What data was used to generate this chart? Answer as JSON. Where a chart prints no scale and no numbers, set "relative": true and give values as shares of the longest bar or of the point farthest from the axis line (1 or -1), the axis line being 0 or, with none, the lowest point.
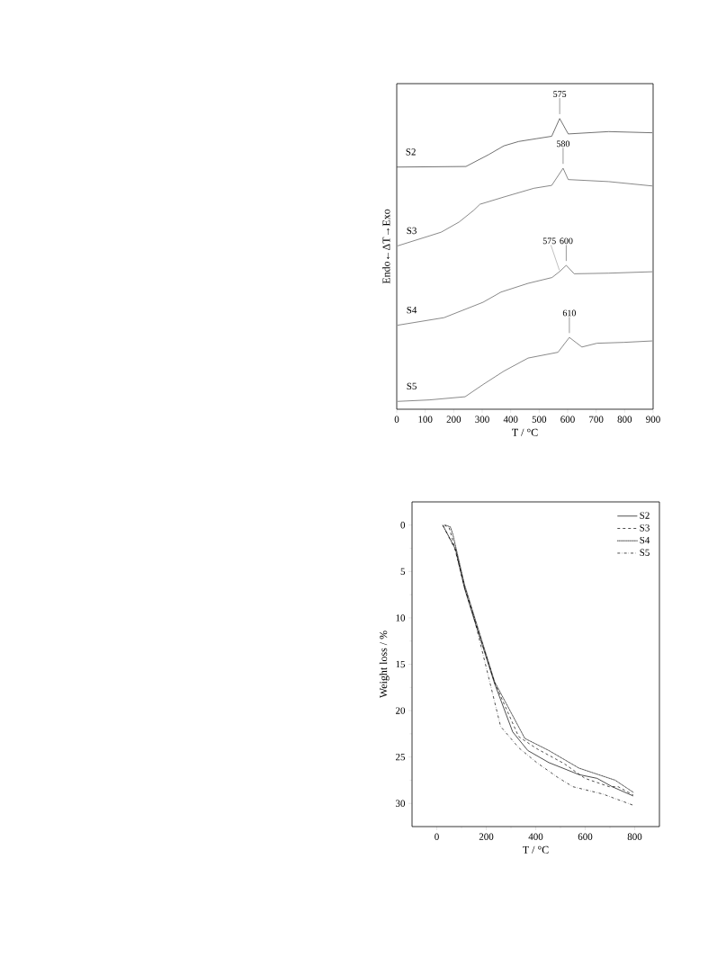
{
  "chart_data": [
    {
      "type": "line",
      "relative": true,
      "xlabel": "T / °C",
      "ylabel": "Endo←ΔT→Exo",
      "xlim": [
        0,
        900
      ],
      "xticks": [
        0,
        100,
        200,
        300,
        400,
        500,
        600,
        700,
        800,
        900
      ],
      "series": [
        {
          "name": "S2",
          "color": "#333333",
          "x": [
            0,
            243,
            323,
            376,
            428,
            492,
            544,
            572,
            602,
            744,
            897
          ],
          "values": [
            0.833,
            0.835,
            0.876,
            0.906,
            0.921,
            0.931,
            0.939,
            1.0,
            0.947,
            0.955,
            0.951
          ]
        },
        {
          "name": "S3",
          "color": "#555555",
          "x": [
            3,
            114,
            156,
            219,
            271,
            292,
            376,
            481,
            544,
            584,
            602,
            744,
            897
          ],
          "values": [
            0.562,
            0.596,
            0.609,
            0.644,
            0.685,
            0.705,
            0.73,
            0.76,
            0.77,
            0.829,
            0.79,
            0.783,
            0.768
          ]
        },
        {
          "name": "S4",
          "color": "#555555",
          "x": [
            3,
            166,
            303,
            366,
            461,
            545,
            571,
            595,
            623,
            744,
            897
          ],
          "values": [
            0.289,
            0.315,
            0.368,
            0.403,
            0.433,
            0.453,
            0.473,
            0.495,
            0.466,
            0.468,
            0.473
          ]
        },
        {
          "name": "S5",
          "color": "#555555",
          "x": [
            3,
            114,
            240,
            303,
            376,
            461,
            566,
            606,
            650,
            703,
            798,
            897
          ],
          "values": [
            0.027,
            0.032,
            0.043,
            0.085,
            0.131,
            0.176,
            0.196,
            0.247,
            0.214,
            0.227,
            0.23,
            0.235
          ]
        }
      ],
      "annotations": [
        {
          "text": "575",
          "x": 572,
          "y": 1.0
        },
        {
          "text": "580",
          "x": 584,
          "y": 0.829
        },
        {
          "text": "575",
          "x": 571,
          "y": 0.473
        },
        {
          "text": "600",
          "x": 595,
          "y": 0.495
        },
        {
          "text": "610",
          "x": 606,
          "y": 0.247
        }
      ]
    },
    {
      "type": "line",
      "xlabel": "T / °C",
      "ylabel": "Weight loss / %",
      "xlim": [
        -100,
        900
      ],
      "ylim": [
        32.5,
        -2.5
      ],
      "xticks": [
        0,
        200,
        400,
        600,
        800
      ],
      "yticks": [
        0,
        5,
        10,
        15,
        20,
        25,
        30
      ],
      "legend": "top right",
      "series": [
        {
          "name": "S2",
          "color": "#000000",
          "line_style": "solid",
          "x": [
            24,
            76,
            112,
            149,
            234,
            307,
            368,
            453,
            575,
            648,
            709,
            794
          ],
          "values": [
            0,
            2.6,
            6.8,
            10.0,
            17.1,
            22.3,
            24.3,
            25.6,
            26.9,
            27.3,
            28.2,
            29.2
          ]
        },
        {
          "name": "S3",
          "color": "#000000",
          "line_style": "dashed",
          "x": [
            30,
            50,
            60,
            112,
            149,
            234,
            331,
            404,
            514,
            599,
            697,
            733,
            794
          ],
          "values": [
            0,
            0.3,
            1.2,
            6.6,
            9.8,
            17.0,
            22.8,
            24.1,
            25.7,
            27.3,
            28.2,
            28.2,
            29.1
          ]
        },
        {
          "name": "S4",
          "color": "#000000",
          "line_style": "dotted",
          "x": [
            35,
            55,
            65,
            112,
            149,
            234,
            356,
            453,
            575,
            721,
            794
          ],
          "values": [
            0,
            0.2,
            1.0,
            6.4,
            9.6,
            16.9,
            23.0,
            24.3,
            26.2,
            27.5,
            28.8
          ]
        },
        {
          "name": "S5",
          "color": "#000000",
          "line_style": "dashdot",
          "x": [
            24,
            76,
            112,
            149,
            216,
            258,
            331,
            404,
            489,
            550,
            672,
            794
          ],
          "values": [
            0,
            2.7,
            6.7,
            9.8,
            17.1,
            21.7,
            24.0,
            25.6,
            27.2,
            28.2,
            29.0,
            30.2
          ]
        }
      ]
    }
  ]
}
